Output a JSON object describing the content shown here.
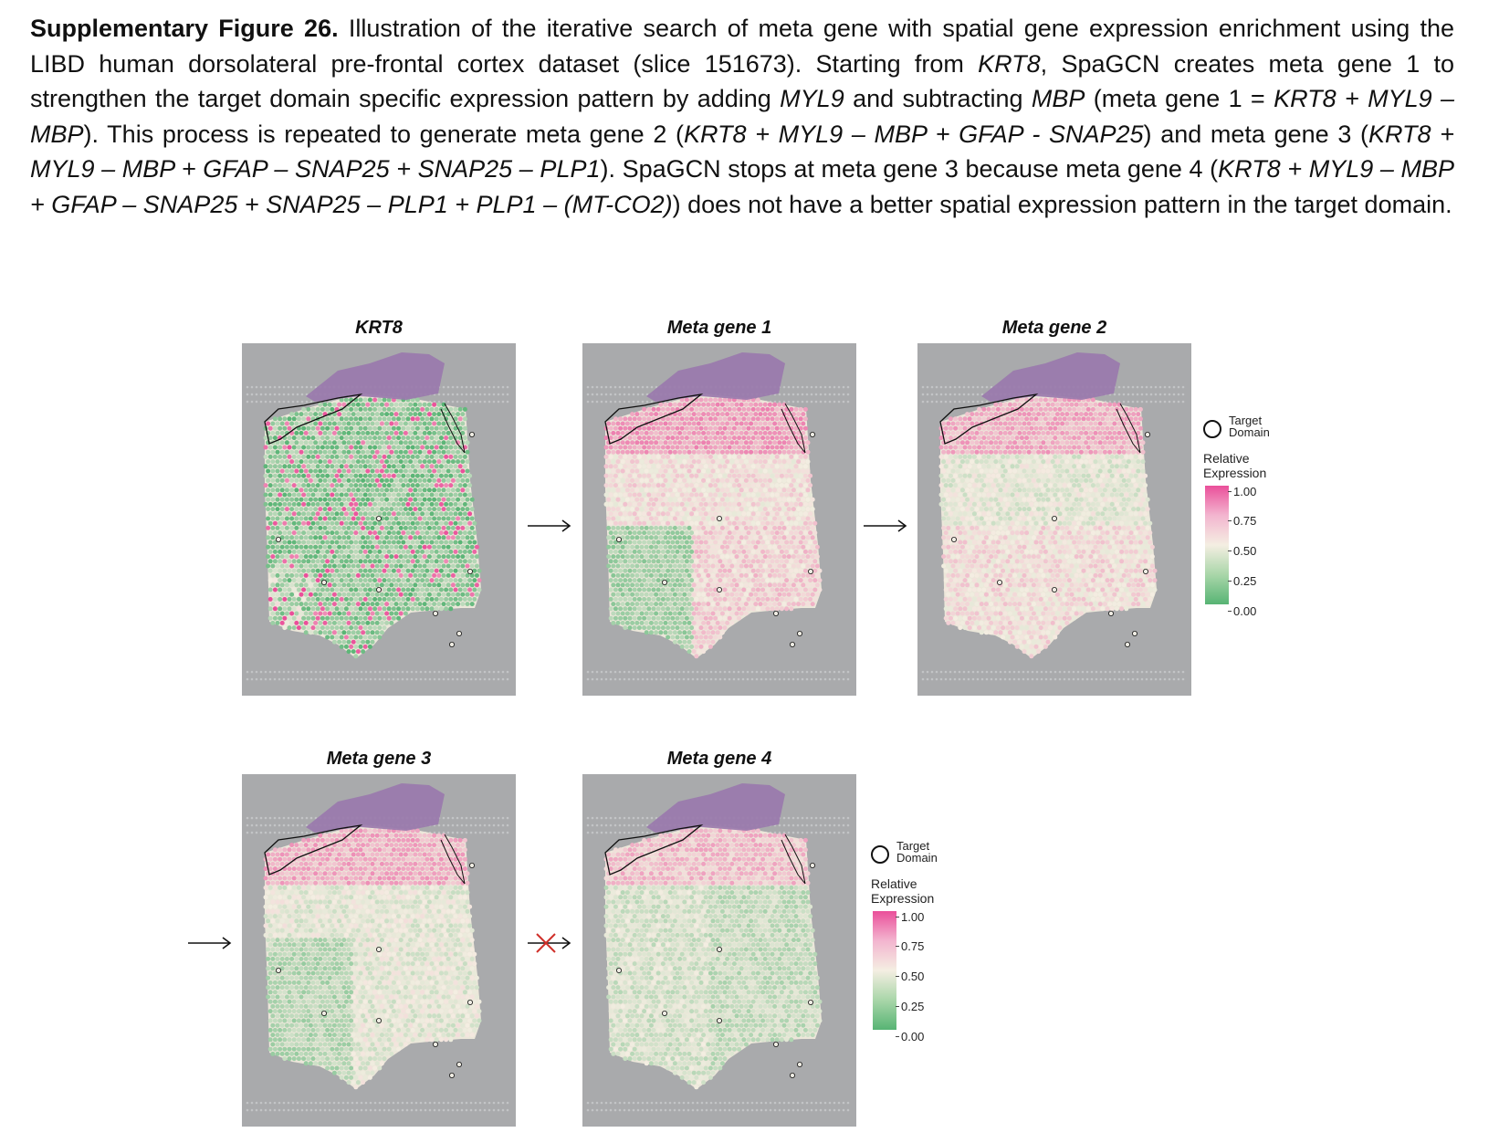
{
  "caption": {
    "label": "Supplementary Figure 26.",
    "s1": " Illustration of the iterative search of meta gene with spatial gene expression enrichment using the LIBD human dorsolateral pre-frontal cortex dataset (slice 151673). Starting from ",
    "g_krt8": "KRT8",
    "s2": ", SpaGCN creates meta gene 1 to strengthen the target domain specific expression pattern by adding ",
    "g_myl9": "MYL9",
    "s3": " and subtracting ",
    "g_mbp": "MBP",
    "s4": " (meta gene 1 = ",
    "f1": "KRT8 + MYL9 – MBP",
    "s5": "). This process is repeated to generate meta gene 2 (",
    "f2": "KRT8 + MYL9 – MBP + GFAP - SNAP25",
    "s6": ") and meta gene 3 (",
    "f3": "KRT8 + MYL9 – MBP + GFAP – SNAP25 + SNAP25 – PLP1",
    "s7": "). SpaGCN stops at meta gene 3 because meta gene 4 (",
    "f4": "KRT8 + MYL9 – MBP + GFAP – SNAP25 + SNAP25 – PLP1 + PLP1 – (MT-CO2)",
    "s8": ") does not have a better spatial expression pattern in the target domain."
  },
  "panels": [
    {
      "title": "KRT8"
    },
    {
      "title": "Meta gene 1"
    },
    {
      "title": "Meta gene 2"
    },
    {
      "title": "Meta gene 3"
    },
    {
      "title": "Meta gene 4"
    }
  ],
  "legend": {
    "target_line1": "Target",
    "target_line2": "Domain",
    "rel_line1": "Relative",
    "rel_line2": "Expression",
    "ticks": [
      "1.00",
      "0.75",
      "0.50",
      "0.25",
      "0.00"
    ]
  },
  "colors": {
    "pink": "#ea4f9a",
    "light": "#f4eee2",
    "green": "#57b474",
    "purple": "#9a79ad",
    "background": "#a9aaac"
  }
}
